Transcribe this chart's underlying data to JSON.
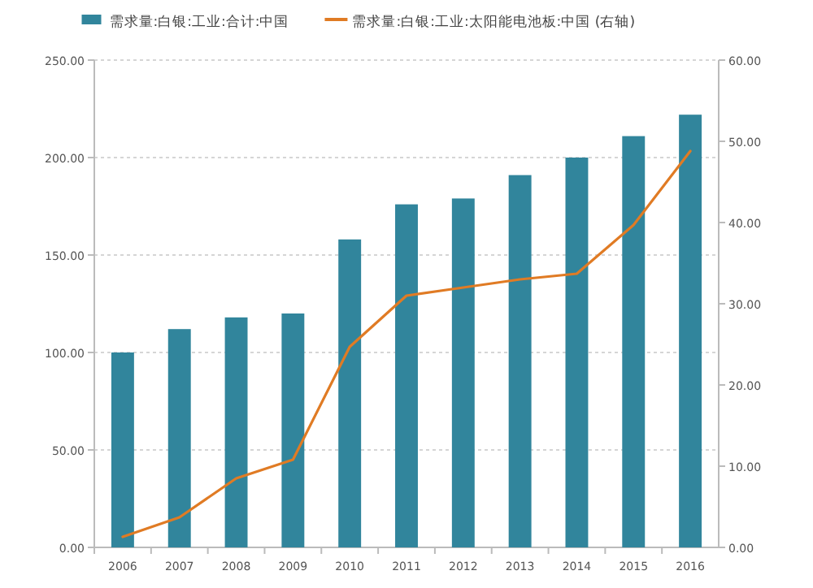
{
  "chart_data": {
    "type": "bar",
    "categories": [
      "2006",
      "2007",
      "2008",
      "2009",
      "2010",
      "2011",
      "2012",
      "2013",
      "2014",
      "2015",
      "2016"
    ],
    "series": [
      {
        "name": "需求量:白银:工业:合计:中国",
        "color": "#31859c",
        "values": [
          100,
          112,
          118,
          120,
          158,
          176,
          179,
          191,
          200,
          211,
          222
        ]
      },
      {
        "name": "需求量:白银:工业:太阳能电池板:中国 (右轴)",
        "type": "line",
        "axis": "y2",
        "color": "#e07b24",
        "values": [
          1.3,
          3.7,
          8.5,
          10.8,
          24.7,
          31,
          32,
          33,
          33.7,
          39.7,
          48.8
        ]
      }
    ],
    "ylim": [
      0,
      250
    ],
    "yticks": [
      {
        "value": 0,
        "label": "0.00"
      },
      {
        "value": 50,
        "label": "50.00"
      },
      {
        "value": 100,
        "label": "100.00"
      },
      {
        "value": 150,
        "label": "150.00"
      },
      {
        "value": 200,
        "label": "200.00"
      },
      {
        "value": 250,
        "label": "250.00"
      }
    ],
    "y2lim": [
      0,
      60
    ],
    "y2ticks": [
      {
        "value": 0,
        "label": "0.00"
      },
      {
        "value": 10,
        "label": "10.00"
      },
      {
        "value": 20,
        "label": "20.00"
      },
      {
        "value": 30,
        "label": "30.00"
      },
      {
        "value": 40,
        "label": "40.00"
      },
      {
        "value": 50,
        "label": "50.00"
      },
      {
        "value": 60,
        "label": "60.00"
      }
    ],
    "grid": "y",
    "legend": "top"
  }
}
